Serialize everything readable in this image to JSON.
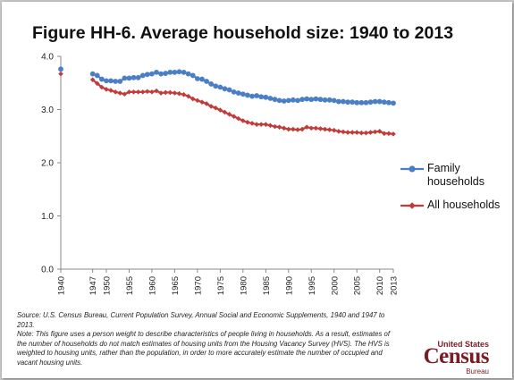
{
  "title": "Figure HH-6. Average household size: 1940 to 2013",
  "colors": {
    "family": "#4a7fc4",
    "all": "#c13b3b",
    "axis": "#888888"
  },
  "legend": [
    {
      "label_lines": [
        "Family",
        "households"
      ],
      "series": "family"
    },
    {
      "label_lines": [
        "All households"
      ],
      "series": "all"
    }
  ],
  "footnote": {
    "source": "Source: U.S. Census Bureau, Current Population Survey, Annual Social and Economic Supplements, 1940 and 1947 to 2013.",
    "note": "Note: This figure uses a person weight to describe characteristics of people living in households. As a result, estimates of the number of households do not match estimates of housing units from the Housing Vacancy Survey (HVS). The HVS is weighted to housing units, rather than the population, in order to more accurately estimate the number of occupied and vacant housing units."
  },
  "logo": {
    "top": "United States",
    "main": "Census",
    "bottom": "Bureau"
  },
  "chart_data": {
    "type": "line",
    "title": "Figure HH-6. Average household size: 1940 to 2013",
    "ylim": [
      0,
      4
    ],
    "yticks": [
      "0.0",
      "1.0",
      "2.0",
      "3.0",
      "4.0"
    ],
    "xtick_labels": [
      "1940",
      "1947",
      "1950",
      "1955",
      "1960",
      "1965",
      "1970",
      "1975",
      "1980",
      "1985",
      "1990",
      "1995",
      "2000",
      "2005",
      "2010",
      "2013"
    ],
    "x": [
      1940,
      1947,
      1948,
      1949,
      1950,
      1951,
      1952,
      1953,
      1954,
      1955,
      1956,
      1957,
      1958,
      1959,
      1960,
      1961,
      1962,
      1963,
      1964,
      1965,
      1966,
      1967,
      1968,
      1969,
      1970,
      1971,
      1972,
      1973,
      1974,
      1975,
      1976,
      1977,
      1978,
      1979,
      1980,
      1981,
      1982,
      1983,
      1984,
      1985,
      1986,
      1987,
      1988,
      1989,
      1990,
      1991,
      1992,
      1993,
      1994,
      1995,
      1996,
      1997,
      1998,
      1999,
      2000,
      2001,
      2002,
      2003,
      2004,
      2005,
      2006,
      2007,
      2008,
      2009,
      2010,
      2011,
      2012,
      2013
    ],
    "series": [
      {
        "name": "Family households",
        "key": "family",
        "marker": "circle",
        "values": [
          3.76,
          3.67,
          3.64,
          3.57,
          3.54,
          3.54,
          3.53,
          3.53,
          3.59,
          3.59,
          3.6,
          3.6,
          3.64,
          3.66,
          3.67,
          3.7,
          3.67,
          3.68,
          3.7,
          3.7,
          3.71,
          3.7,
          3.67,
          3.64,
          3.58,
          3.57,
          3.53,
          3.48,
          3.44,
          3.42,
          3.39,
          3.37,
          3.33,
          3.31,
          3.29,
          3.27,
          3.25,
          3.26,
          3.24,
          3.23,
          3.21,
          3.19,
          3.17,
          3.16,
          3.17,
          3.18,
          3.17,
          3.19,
          3.2,
          3.19,
          3.2,
          3.19,
          3.18,
          3.18,
          3.17,
          3.15,
          3.15,
          3.14,
          3.14,
          3.13,
          3.13,
          3.13,
          3.14,
          3.15,
          3.15,
          3.14,
          3.13,
          3.12
        ]
      },
      {
        "name": "All households",
        "key": "all",
        "marker": "diamond",
        "values": [
          3.67,
          3.56,
          3.49,
          3.42,
          3.38,
          3.36,
          3.33,
          3.31,
          3.29,
          3.33,
          3.33,
          3.33,
          3.33,
          3.34,
          3.33,
          3.35,
          3.31,
          3.32,
          3.32,
          3.31,
          3.3,
          3.28,
          3.25,
          3.2,
          3.17,
          3.14,
          3.11,
          3.06,
          3.03,
          2.99,
          2.95,
          2.91,
          2.87,
          2.83,
          2.79,
          2.76,
          2.74,
          2.72,
          2.72,
          2.72,
          2.7,
          2.68,
          2.67,
          2.65,
          2.63,
          2.63,
          2.62,
          2.63,
          2.67,
          2.65,
          2.65,
          2.64,
          2.63,
          2.62,
          2.61,
          2.59,
          2.58,
          2.57,
          2.57,
          2.57,
          2.56,
          2.56,
          2.57,
          2.58,
          2.59,
          2.55,
          2.55,
          2.54
        ]
      }
    ],
    "legend_position": "right",
    "grid": false
  }
}
